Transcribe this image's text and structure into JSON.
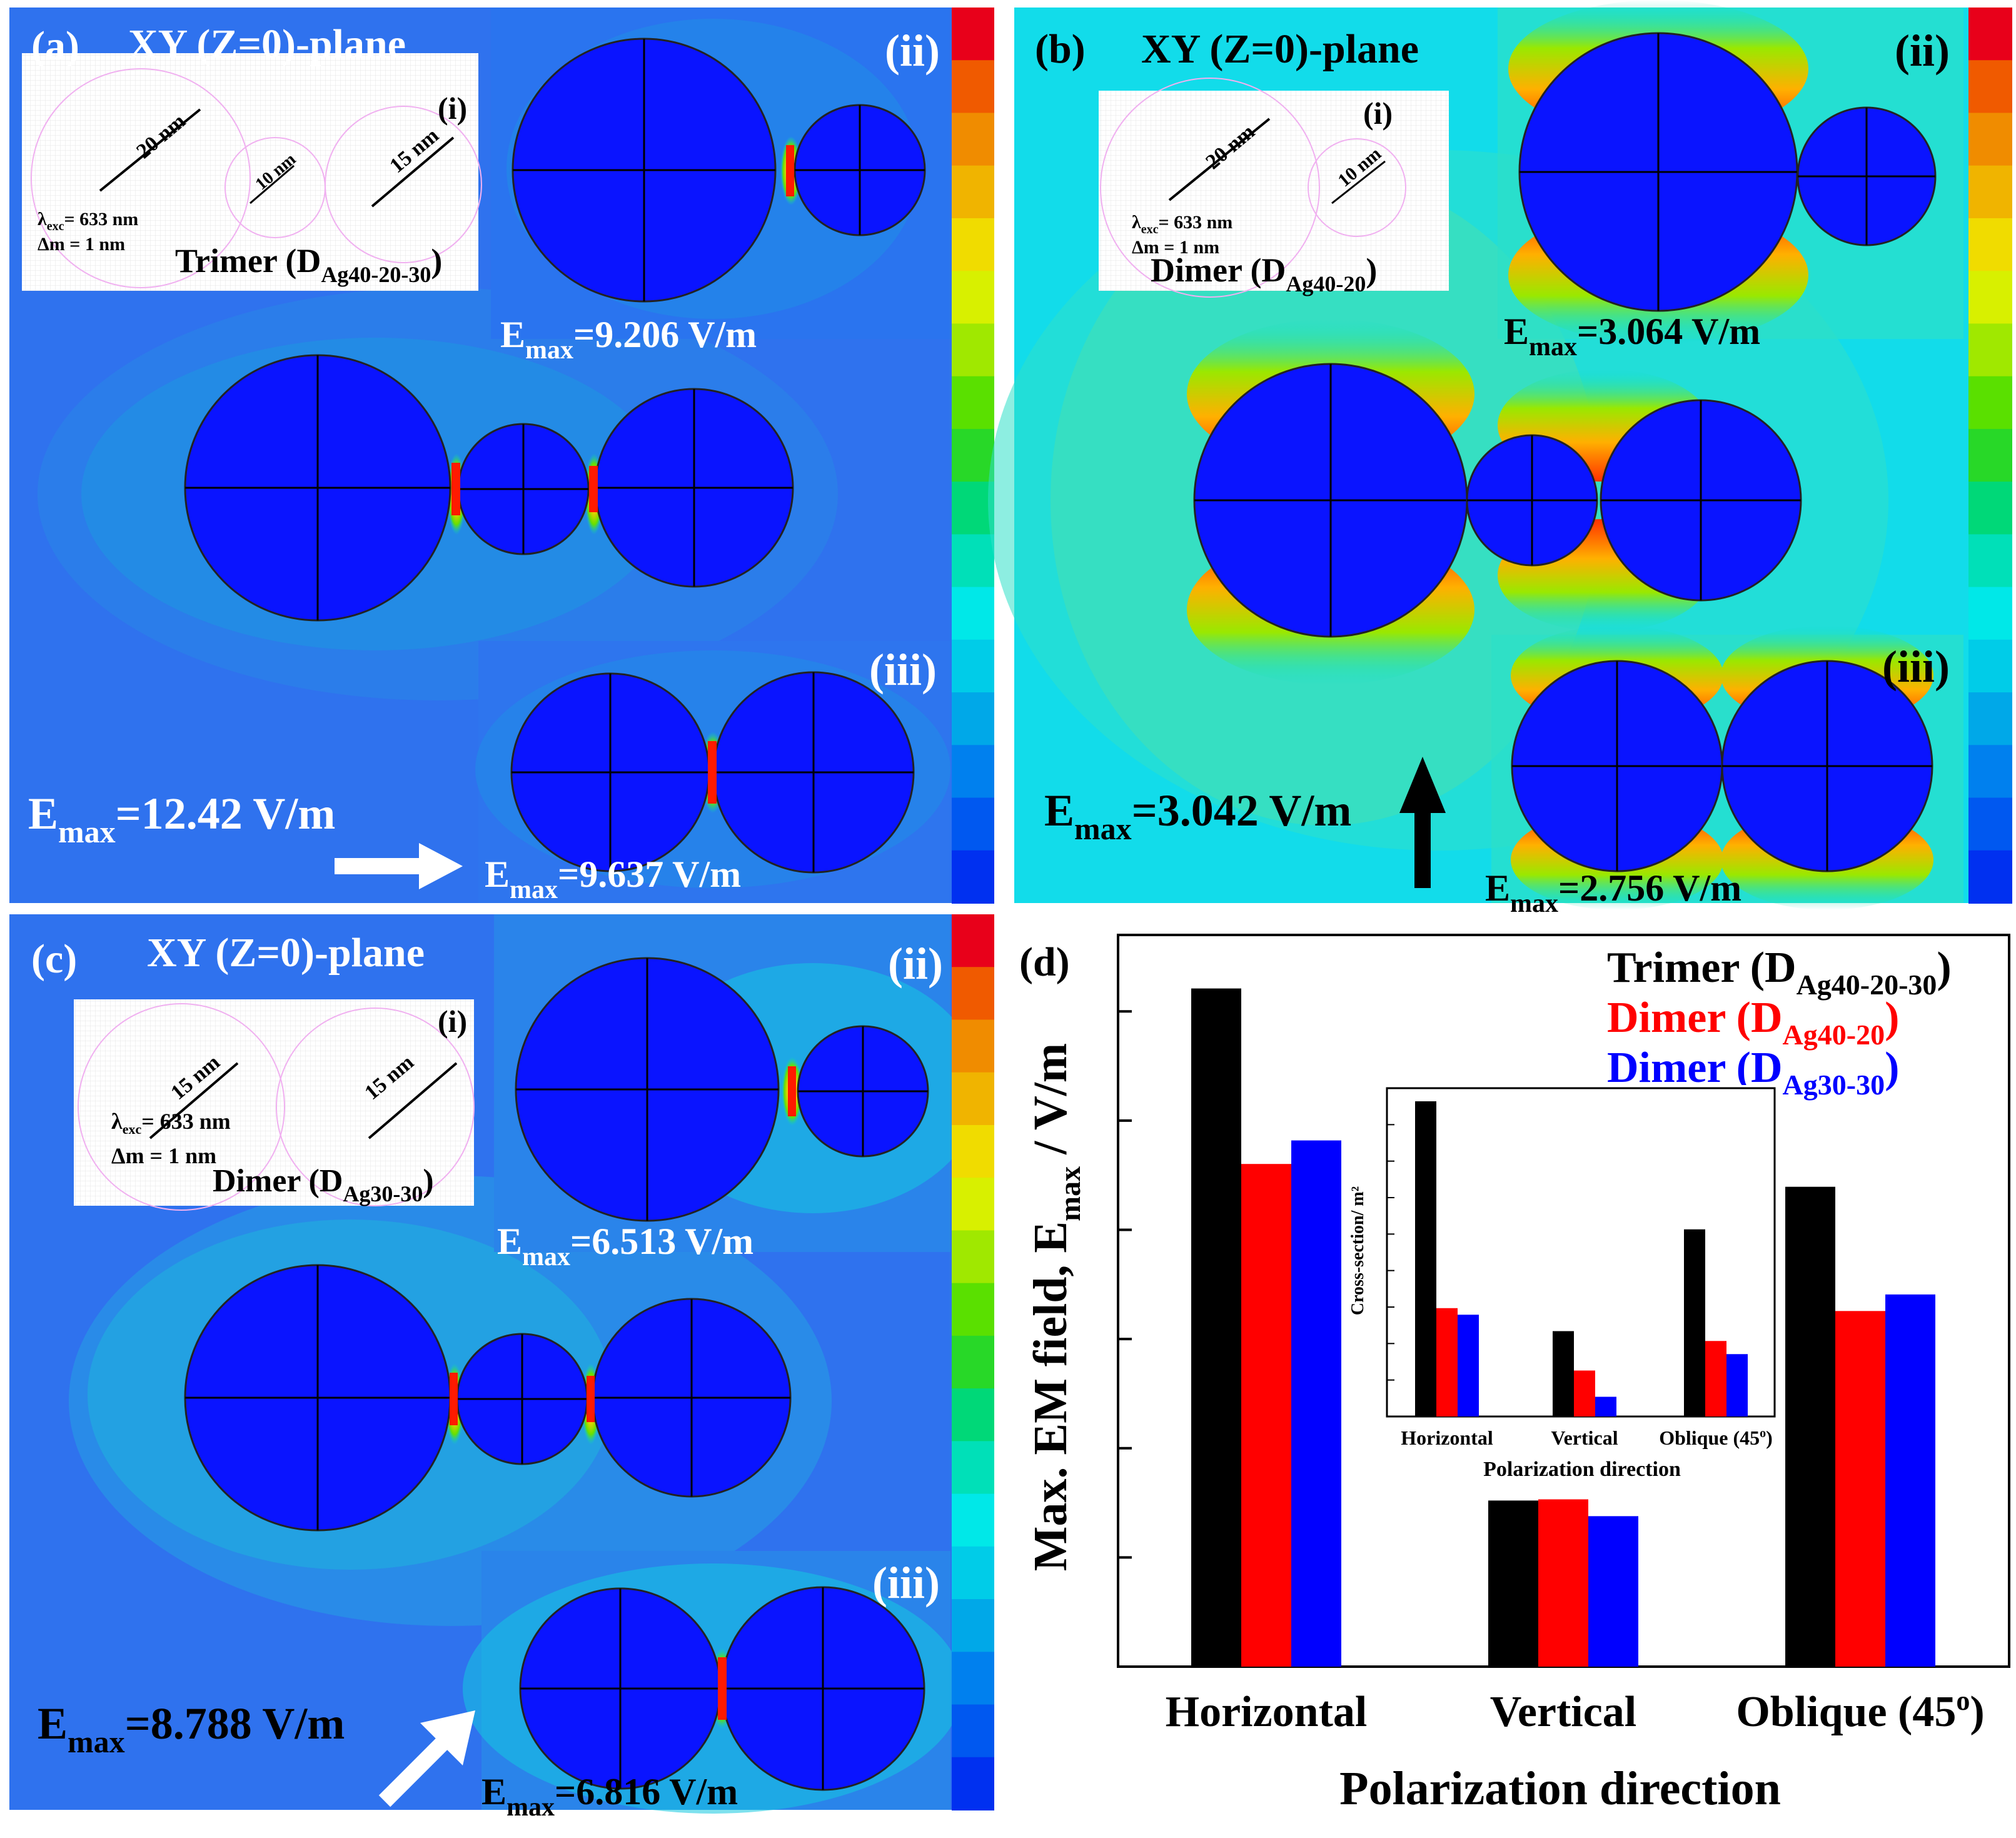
{
  "panels": {
    "a": {
      "label": "(a)",
      "plane": "XY (Z=0)-plane",
      "inset": {
        "label": "(i)",
        "sizes": [
          "20 nm",
          "10 nm",
          "15 nm"
        ],
        "lambda_label": "λ",
        "lambda_sub": "exc",
        "lambda_value": "= 633 nm",
        "delta_m": "Δm = 1 nm",
        "structure": "Trimer (D",
        "structure_sub": "Ag40-20-30",
        "structure_end": ")"
      },
      "sub_ii": {
        "label": "(ii)",
        "emax": "=9.206 V/m"
      },
      "sub_iii": {
        "label": "(iii)",
        "emax": "=9.637 V/m"
      },
      "emax_main": "=12.42 V/m",
      "polarization": "horizontal"
    },
    "b": {
      "label": "(b)",
      "plane": "XY (Z=0)-plane",
      "inset": {
        "label": "(i)",
        "sizes": [
          "20 nm",
          "10 nm"
        ],
        "lambda_label": "λ",
        "lambda_sub": "exc",
        "lambda_value": "= 633 nm",
        "delta_m": "Δm = 1 nm",
        "structure": "Dimer (D",
        "structure_sub": "Ag40-20",
        "structure_end": ")"
      },
      "sub_ii": {
        "label": "(ii)",
        "emax": "=3.064 V/m"
      },
      "sub_iii": {
        "label": "(iii)",
        "emax": "=2.756 V/m"
      },
      "emax_main": "=3.042 V/m",
      "polarization": "vertical"
    },
    "c": {
      "label": "(c)",
      "plane": "XY (Z=0)-plane",
      "inset": {
        "label": "(i)",
        "sizes": [
          "15 nm",
          "15 nm"
        ],
        "lambda_label": "λ",
        "lambda_sub": "exc",
        "lambda_value": "= 633 nm",
        "delta_m": "Δm = 1 nm",
        "structure": "Dimer (D",
        "structure_sub": "Ag30-30",
        "structure_end": ")"
      },
      "sub_ii": {
        "label": "(ii)",
        "emax": "=6.513 V/m"
      },
      "sub_iii": {
        "label": "(iii)",
        "emax": "=6.816 V/m"
      },
      "emax_main": "=8.788 V/m",
      "polarization": "oblique"
    }
  },
  "emax_symbol": "E",
  "emax_sub": "max",
  "colors": {
    "field_blue": "#2f6ff0",
    "field_cyan": "#00e8e8",
    "particle": "#0a14ff",
    "trimer": "#000000",
    "dimer_40_20": "#ff0000",
    "dimer_30_30": "#0000ff"
  },
  "colorbar": [
    "#e8001a",
    "#f05a00",
    "#f08c00",
    "#f0b400",
    "#f0dc00",
    "#d8f000",
    "#a0e800",
    "#5ae000",
    "#28d828",
    "#00d878",
    "#00e0b8",
    "#00e8e8",
    "#00cce8",
    "#00a8e8",
    "#0080ee",
    "#0058f0",
    "#0030f0"
  ],
  "chart_data": {
    "panel_label": "(d)",
    "type": "bar",
    "title": "",
    "xlabel": "Polarization direction",
    "ylabel": "Max. EM field, E",
    "ylabel_sub": "max",
    "ylabel_end": " / V/m",
    "categories": [
      "Horizontal",
      "Vertical",
      "Oblique (45º)"
    ],
    "category_labels": [
      "Horizontal",
      "Vertical",
      "Oblique (45",
      "o",
      ")"
    ],
    "ylim": [
      0,
      13.4
    ],
    "series": [
      {
        "name": "Trimer (D",
        "sub": "Ag40-20-30",
        "end": ")",
        "color": "#000000",
        "values": [
          12.42,
          3.042,
          8.788
        ]
      },
      {
        "name": "Dimer (D",
        "sub": "Ag40-20",
        "end": ")",
        "color": "#ff0000",
        "values": [
          9.206,
          3.064,
          6.513
        ]
      },
      {
        "name": "Dimer (D",
        "sub": "Ag30-30",
        "end": ")",
        "color": "#0000ff",
        "values": [
          9.637,
          2.756,
          6.816
        ]
      }
    ],
    "inset": {
      "type": "bar",
      "xlabel": "Polarization direction",
      "ylabel": "Cross-section/ m²",
      "categories": [
        "Horizontal",
        "Vertical",
        "Oblique (45º)"
      ],
      "category_labels": [
        "Horizontal",
        "Vertical",
        "Oblique (45",
        "o",
        ")"
      ],
      "ylim": [
        0,
        1.0
      ],
      "series": [
        {
          "name": "Trimer",
          "color": "#000000",
          "values": [
            0.96,
            0.26,
            0.57
          ]
        },
        {
          "name": "Dimer 40-20",
          "color": "#ff0000",
          "values": [
            0.33,
            0.14,
            0.23
          ]
        },
        {
          "name": "Dimer 30-30",
          "color": "#0000ff",
          "values": [
            0.31,
            0.06,
            0.19
          ]
        }
      ]
    }
  }
}
